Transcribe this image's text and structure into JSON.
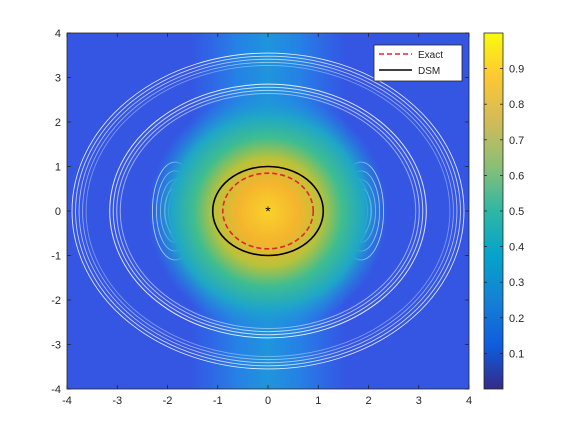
{
  "chart_data": {
    "type": "heatmap",
    "title": "",
    "xlabel": "",
    "ylabel": "",
    "xlim": [
      -4,
      4
    ],
    "ylim": [
      -4,
      4
    ],
    "xticks": [
      "-4",
      "-3",
      "-2",
      "-1",
      "0",
      "1",
      "2",
      "3",
      "4"
    ],
    "yticks": [
      "-4",
      "-3",
      "-2",
      "-1",
      "0",
      "1",
      "2",
      "3",
      "4"
    ],
    "colormap": "parula",
    "colorbar": {
      "range": [
        0,
        1
      ],
      "ticks": [
        "0.1",
        "0.2",
        "0.3",
        "0.4",
        "0.5",
        "0.6",
        "0.7",
        "0.8",
        "0.9"
      ],
      "tick_values": [
        0.1,
        0.2,
        0.3,
        0.4,
        0.5,
        0.6,
        0.7,
        0.8,
        0.9
      ]
    },
    "grid": false,
    "legend_position": "top-right",
    "legend": [
      {
        "label": "Exact",
        "color": "#e0262d",
        "style": "dashed"
      },
      {
        "label": "DSM",
        "color": "#000000",
        "style": "solid"
      }
    ],
    "exact_boundary": {
      "shape": "ellipse",
      "center": [
        0,
        0
      ],
      "rx": 0.9,
      "ry": 0.85
    },
    "dsm_boundary": {
      "shape": "ellipse",
      "center": [
        0,
        0
      ],
      "rx": 1.1,
      "ry": 1.0
    },
    "center_marker": {
      "x": 0,
      "y": 0,
      "symbol": "*"
    }
  }
}
